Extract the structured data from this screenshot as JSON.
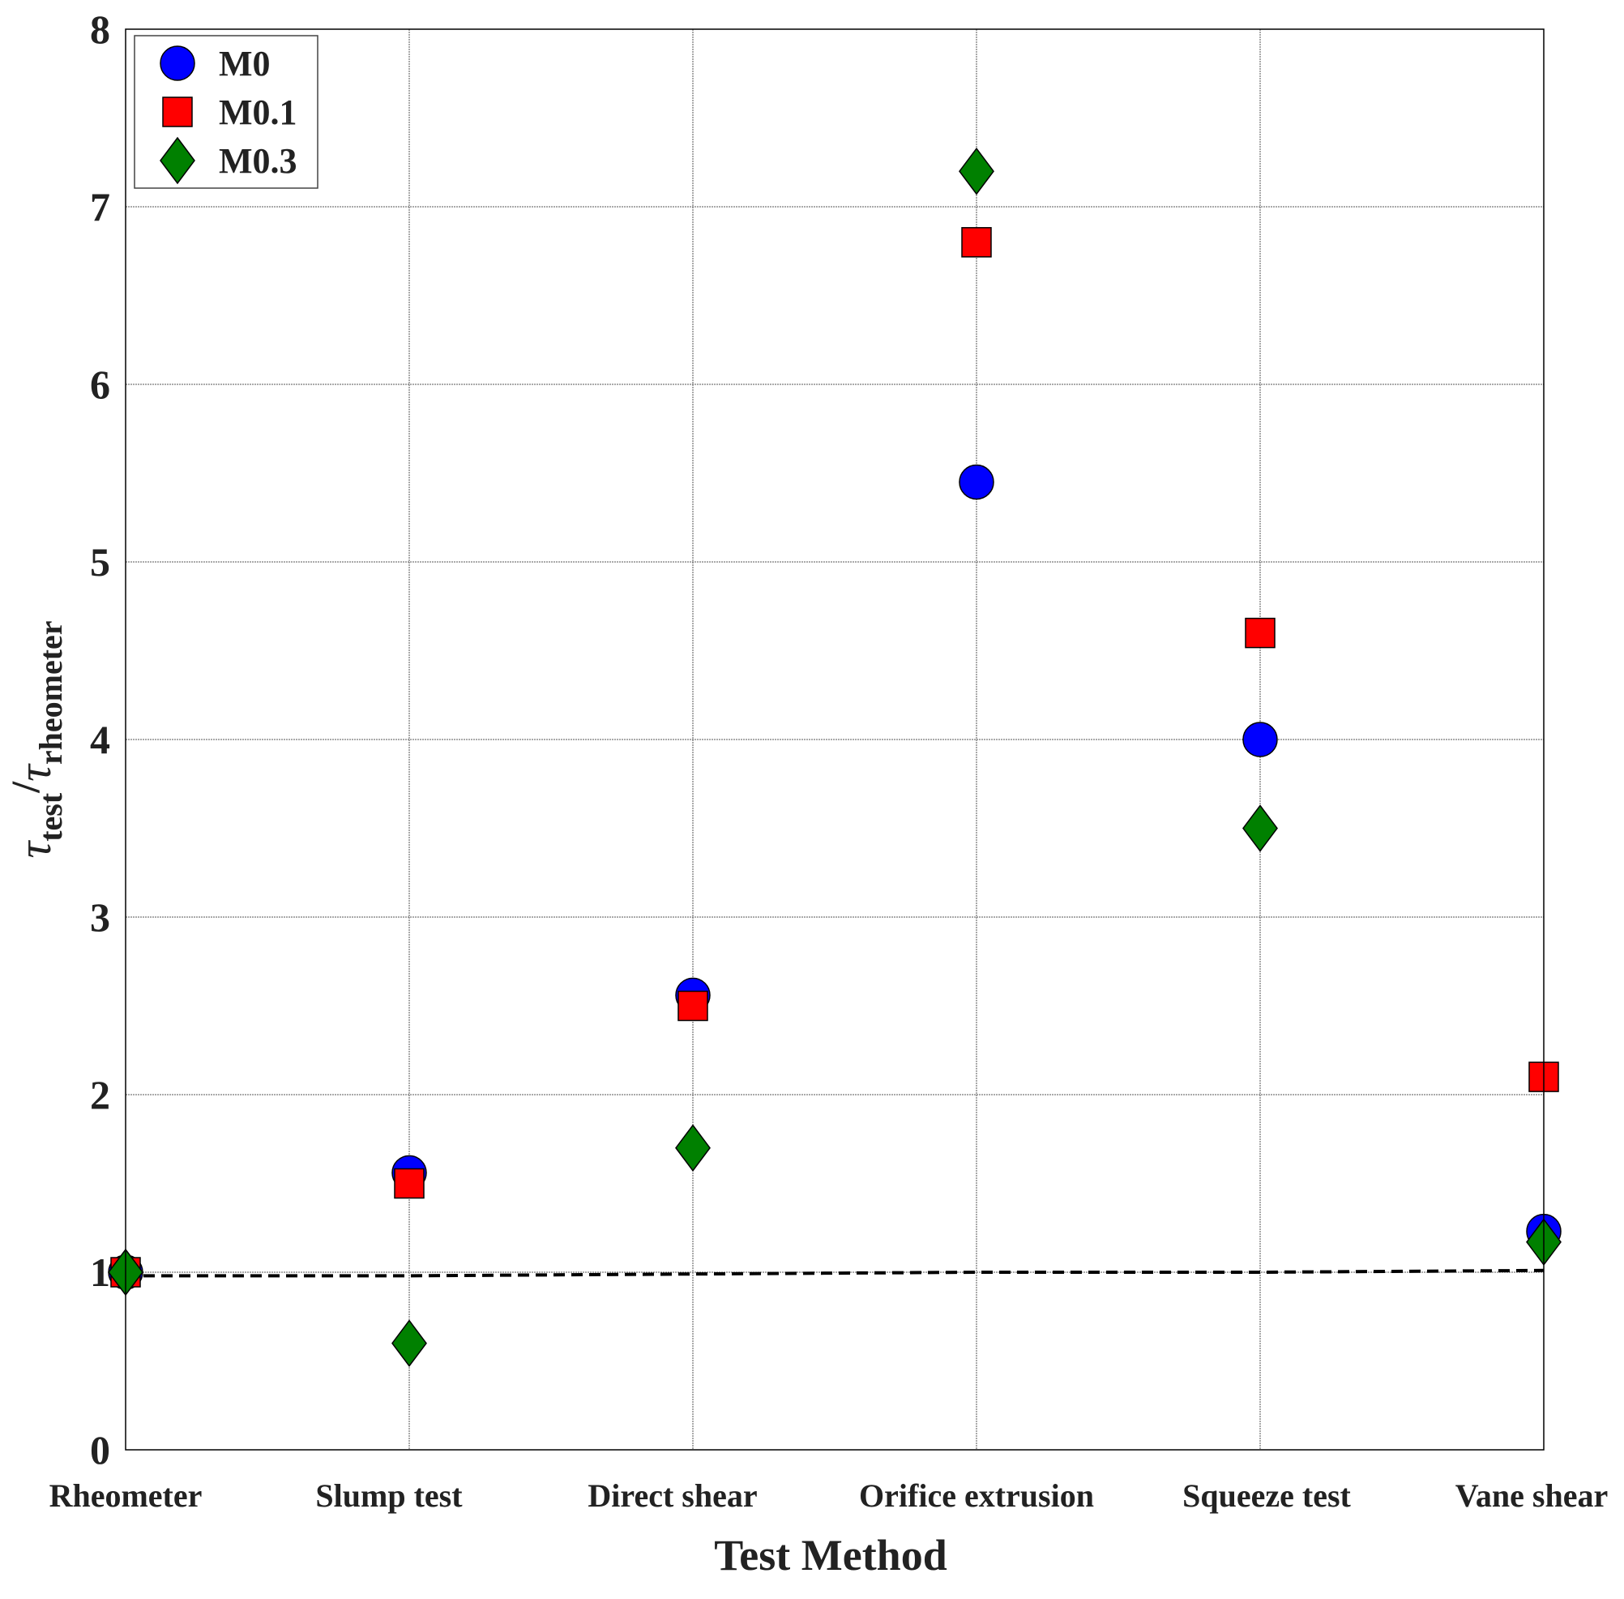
{
  "chart_data": {
    "type": "scatter",
    "title": "",
    "xlabel": "Test Method",
    "ylabel": {
      "base": "τ",
      "sub": "test",
      "sep": "/",
      "base2": "τ",
      "sub2": "rheometer"
    },
    "categories": [
      "Rheometer",
      "Slump test",
      "Direct shear",
      "Orifice extrusion",
      "Squeeze test",
      "Vane shear"
    ],
    "ylim": [
      0,
      8
    ],
    "yticks": [
      "0",
      "1",
      "2",
      "3",
      "4",
      "5",
      "6",
      "7",
      "8"
    ],
    "grid": true,
    "legend_position": "top-left",
    "series": [
      {
        "name": "M0",
        "marker": "circle",
        "color": "#0000ff",
        "values": [
          1.0,
          1.56,
          2.56,
          5.45,
          4.0,
          1.23
        ]
      },
      {
        "name": "M0.1",
        "marker": "square",
        "color": "#ff0000",
        "values": [
          1.0,
          1.5,
          2.5,
          6.8,
          4.6,
          2.1
        ]
      },
      {
        "name": "M0.3",
        "marker": "diamond",
        "color": "#008000",
        "values": [
          1.0,
          0.6,
          1.7,
          7.2,
          3.5,
          1.17
        ]
      }
    ],
    "reference_line": {
      "style": "dashed",
      "color": "#000000",
      "values": [
        0.98,
        0.98,
        0.99,
        1.0,
        1.0,
        1.01
      ]
    }
  }
}
